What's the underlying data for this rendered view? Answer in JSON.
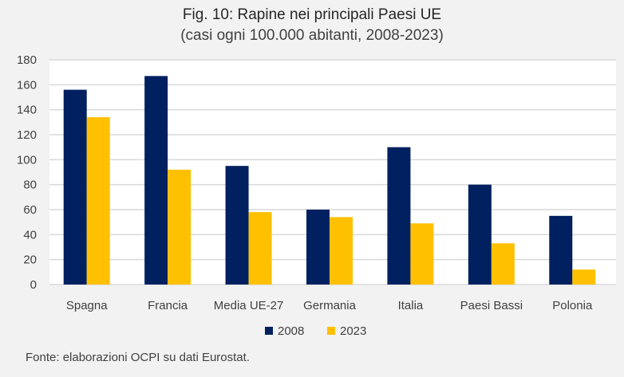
{
  "chart_data": {
    "type": "bar",
    "title": "Fig. 10: Rapine nei principali Paesi UE",
    "subtitle": "(casi ogni 100.000 abitanti, 2008-2023)",
    "categories": [
      "Spagna",
      "Francia",
      "Media UE-27",
      "Germania",
      "Italia",
      "Paesi Bassi",
      "Polonia"
    ],
    "series": [
      {
        "name": "2008",
        "color": "#002060",
        "values": [
          156,
          167,
          95,
          60,
          110,
          80,
          55
        ]
      },
      {
        "name": "2023",
        "color": "#ffc000",
        "values": [
          134,
          92,
          58,
          54,
          49,
          33,
          12
        ]
      }
    ],
    "ylim": [
      0,
      180
    ],
    "yticks": [
      0,
      20,
      40,
      60,
      80,
      100,
      120,
      140,
      160,
      180
    ],
    "grid": true,
    "legend": "bottom",
    "xlabel": "",
    "ylabel": ""
  },
  "source": "Fonte: elaborazioni OCPI su dati Eurostat."
}
